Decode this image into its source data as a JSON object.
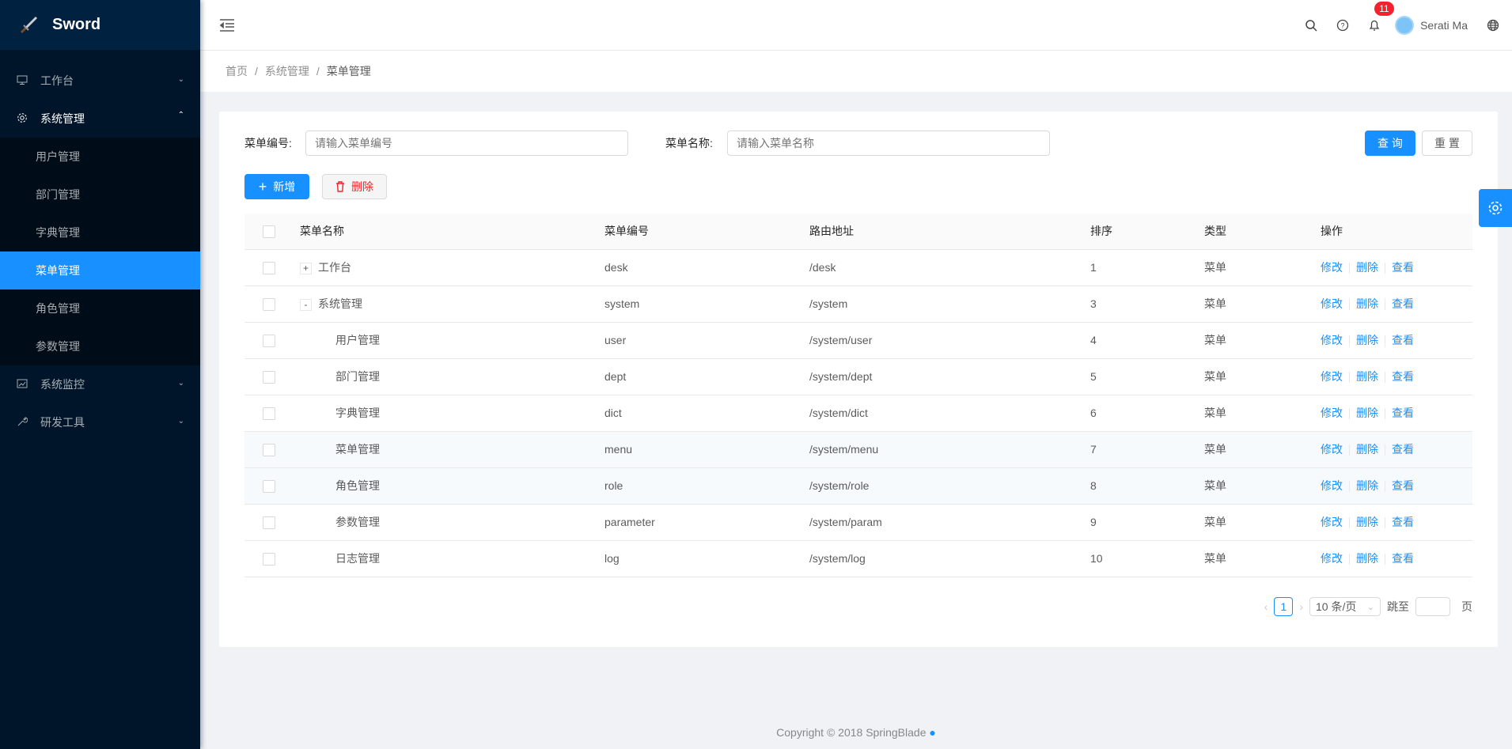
{
  "app": {
    "name": "Sword"
  },
  "sidebar": {
    "items": [
      {
        "label": "工作台",
        "icon": "desktop-icon"
      },
      {
        "label": "系统管理",
        "icon": "setting-icon",
        "children": [
          "用户管理",
          "部门管理",
          "字典管理",
          "菜单管理",
          "角色管理",
          "参数管理"
        ],
        "active": "菜单管理"
      },
      {
        "label": "系统监控",
        "icon": "line-chart-icon"
      },
      {
        "label": "研发工具",
        "icon": "tool-icon"
      }
    ]
  },
  "header": {
    "notifications": "11",
    "user": "Serati Ma"
  },
  "breadcrumb": [
    "首页",
    "系统管理",
    "菜单管理"
  ],
  "search": {
    "code_label": "菜单编号:",
    "code_placeholder": "请输入菜单编号",
    "name_label": "菜单名称:",
    "name_placeholder": "请输入菜单名称",
    "query": "查 询",
    "reset": "重 置"
  },
  "toolbar": {
    "add": "新增",
    "delete": "删除"
  },
  "table": {
    "columns": [
      "菜单名称",
      "菜单编号",
      "路由地址",
      "排序",
      "类型",
      "操作"
    ],
    "rows": [
      {
        "name": "工作台",
        "code": "desk",
        "path": "/desk",
        "sort": "1",
        "type": "菜单",
        "expand": "+"
      },
      {
        "name": "系统管理",
        "code": "system",
        "path": "/system",
        "sort": "3",
        "type": "菜单",
        "expand": "-"
      },
      {
        "name": "用户管理",
        "code": "user",
        "path": "/system/user",
        "sort": "4",
        "type": "菜单"
      },
      {
        "name": "部门管理",
        "code": "dept",
        "path": "/system/dept",
        "sort": "5",
        "type": "菜单"
      },
      {
        "name": "字典管理",
        "code": "dict",
        "path": "/system/dict",
        "sort": "6",
        "type": "菜单"
      },
      {
        "name": "菜单管理",
        "code": "menu",
        "path": "/system/menu",
        "sort": "7",
        "type": "菜单"
      },
      {
        "name": "角色管理",
        "code": "role",
        "path": "/system/role",
        "sort": "8",
        "type": "菜单"
      },
      {
        "name": "参数管理",
        "code": "parameter",
        "path": "/system/param",
        "sort": "9",
        "type": "菜单"
      },
      {
        "name": "日志管理",
        "code": "log",
        "path": "/system/log",
        "sort": "10",
        "type": "菜单"
      }
    ],
    "actions": [
      "修改",
      "删除",
      "查看"
    ]
  },
  "pagination": {
    "current": "1",
    "page_size": "10 条/页",
    "jump_label": "跳至",
    "page_label": "页"
  },
  "footer": {
    "copyright": "Copyright",
    "year_text": "2018 SpringBlade"
  },
  "colors": {
    "primary": "#1890ff",
    "sidebar": "#001529",
    "danger": "#f5222d"
  }
}
